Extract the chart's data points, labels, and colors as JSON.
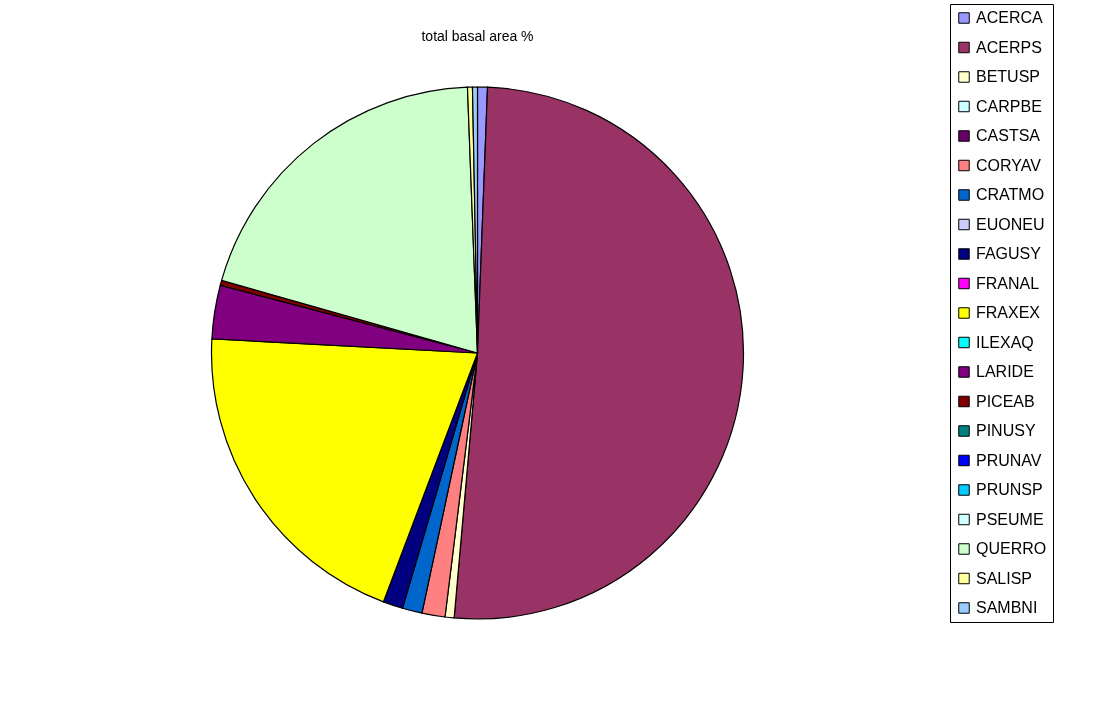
{
  "chart_data": {
    "type": "pie",
    "title": "total basal area %",
    "categories": [
      "ACERCA",
      "ACERPS",
      "BETUSP",
      "CARPBE",
      "CASTSA",
      "CORYAV",
      "CRATMO",
      "EUONEU",
      "FAGUSY",
      "FRANAL",
      "FRAXEX",
      "ILEXAQ",
      "LARIDE",
      "PICEAB",
      "PINUSY",
      "PRUNAV",
      "PRUNSP",
      "PSEUME",
      "QUERRO",
      "SALISP",
      "SAMBNI"
    ],
    "values": [
      0.6,
      50.8,
      0.55,
      0,
      0,
      1.4,
      1.2,
      0,
      1.2,
      0,
      20.1,
      0,
      3.25,
      0.3,
      0,
      0,
      0,
      0,
      20,
      0.3,
      0.3
    ],
    "colors": [
      "#9999ff",
      "#993366",
      "#ffffcc",
      "#ccffff",
      "#660066",
      "#ff8080",
      "#0066cc",
      "#ccccff",
      "#000080",
      "#ff00ff",
      "#ffff00",
      "#00ffff",
      "#800080",
      "#800000",
      "#008080",
      "#0000ff",
      "#00ccff",
      "#ccffff",
      "#ccffcc",
      "#ffff99",
      "#99ccff"
    ],
    "legend": "right"
  }
}
